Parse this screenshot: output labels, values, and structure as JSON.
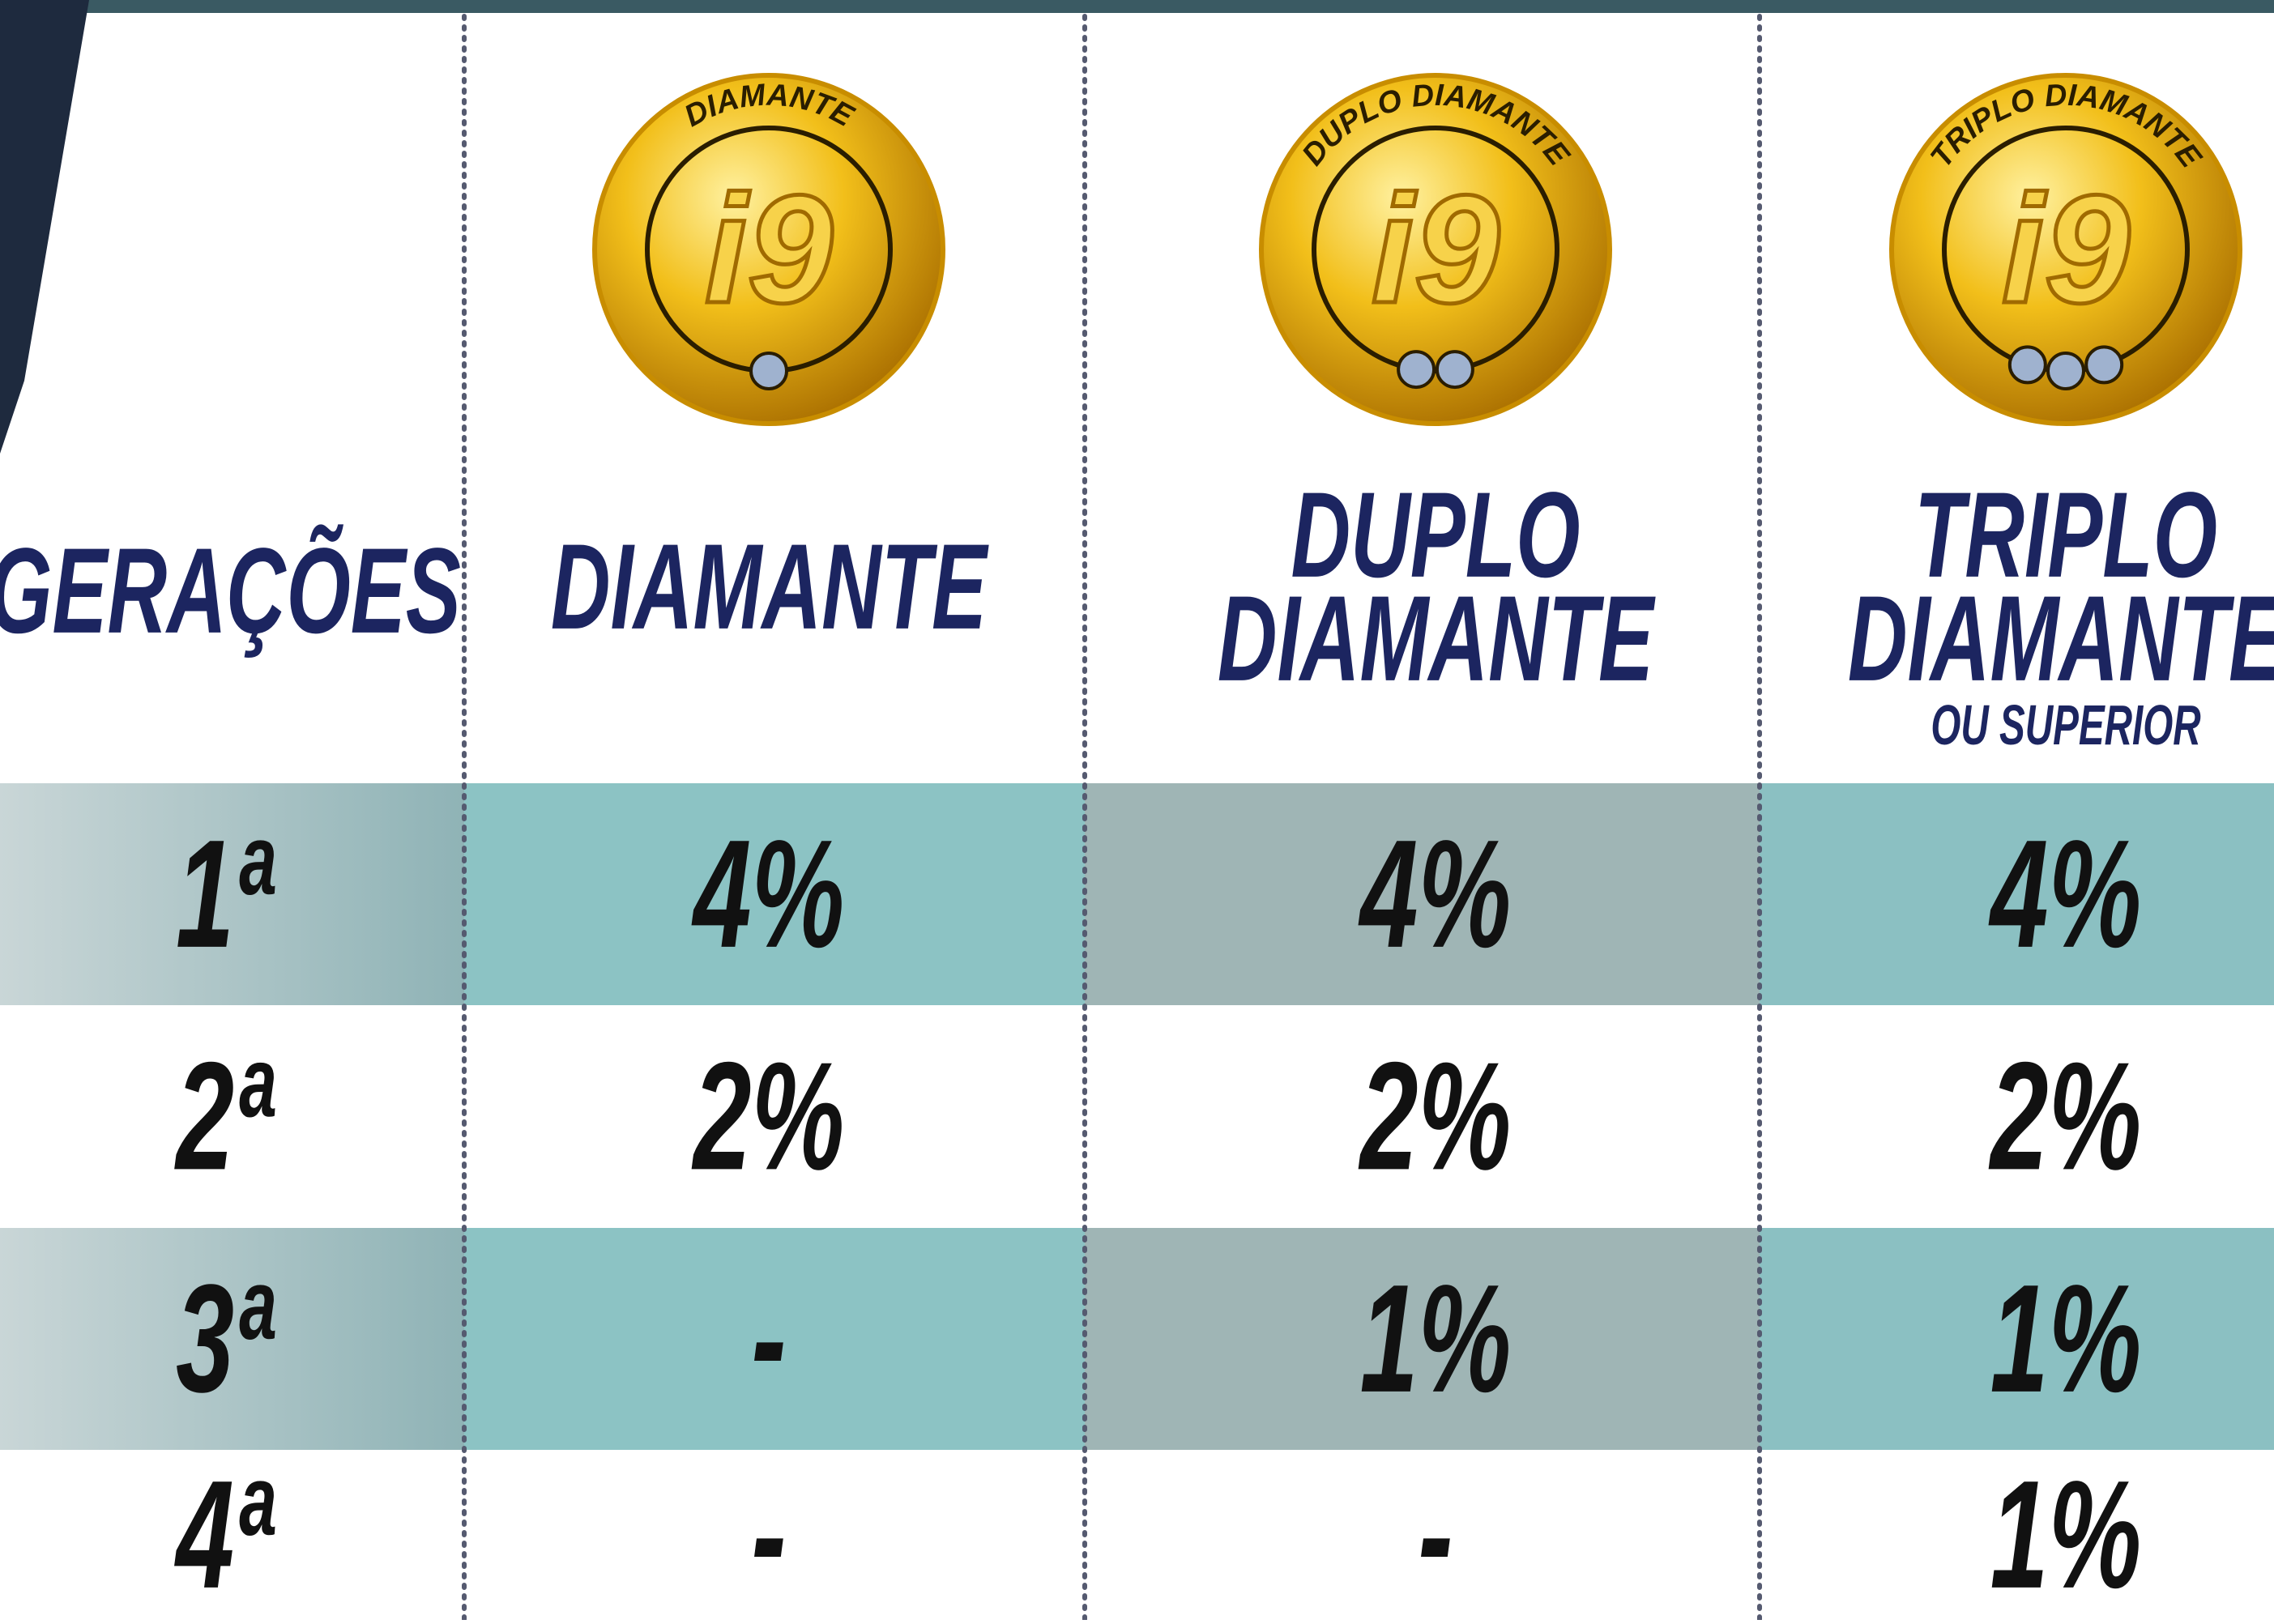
{
  "header": {
    "generations_label": "GERAÇÕES"
  },
  "columns": [
    {
      "badge_text": "DIAMANTE",
      "logo": "i9",
      "title_lines": [
        "DIAMANTE"
      ]
    },
    {
      "badge_text": "DUPLO DIAMANTE",
      "logo": "i9",
      "title_lines": [
        "DUPLO",
        "DIAMANTE"
      ]
    },
    {
      "badge_text": "TRIPLO DIAMANTE",
      "logo": "i9",
      "title_lines": [
        "TRIPLO",
        "DIAMANTE"
      ],
      "note": "OU SUPERIOR"
    }
  ],
  "rows": [
    {
      "generation": "1ª",
      "values": [
        "4%",
        "4%",
        "4%"
      ]
    },
    {
      "generation": "2ª",
      "values": [
        "2%",
        "2%",
        "2%"
      ]
    },
    {
      "generation": "3ª",
      "values": [
        "-",
        "1%",
        "1%"
      ]
    },
    {
      "generation": "4ª",
      "values": [
        "-",
        "-",
        "1%"
      ]
    }
  ]
}
